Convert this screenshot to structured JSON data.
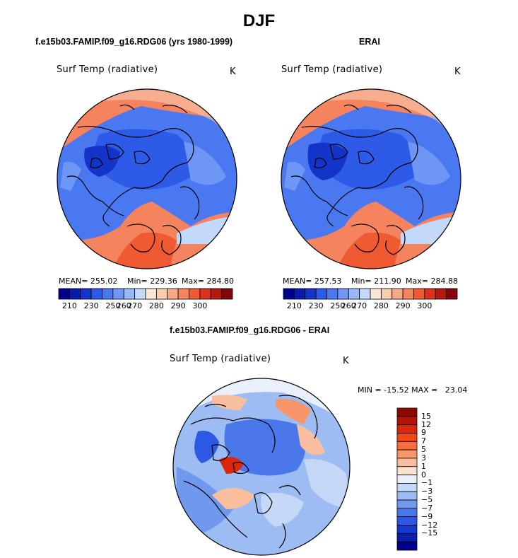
{
  "title": "DJF",
  "panels": [
    {
      "id": "model",
      "subtitle": "f.e15b03.FAMIP.f09_g16.RDG06 (yrs 1980-1999)",
      "variable": "Surf Temp (radiative)",
      "units": "K",
      "mean_text": "MEAN= 255.02",
      "min_text": "Min= 229.36",
      "max_text": "Max= 284.80"
    },
    {
      "id": "erai",
      "subtitle": "ERAI",
      "variable": "Surf Temp (radiative)",
      "units": "K",
      "mean_text": "MEAN= 257.53",
      "min_text": "Min= 211.90",
      "max_text": "Max= 284.88"
    }
  ],
  "diff_panel": {
    "subtitle": "f.e15b03.FAMIP.f09_g16.RDG06 - ERAI",
    "variable": "Surf Temp (radiative)",
    "units": "K",
    "minmax_text": "MIN = -15.52 MAX =   23.04"
  },
  "colorbar_abs": {
    "colors": [
      "#00008c",
      "#0a1aaa",
      "#1433c8",
      "#2d5ae6",
      "#4a78f0",
      "#6e96f5",
      "#96b9fa",
      "#c3d9fc",
      "#fbe7d8",
      "#f9cbb0",
      "#f7a886",
      "#f5835e",
      "#ef5a33",
      "#d8321a",
      "#b4190e",
      "#820808"
    ],
    "tick_labels": [
      "210",
      "230",
      "250",
      "260",
      "270",
      "280",
      "290",
      "300"
    ]
  },
  "colorbar_diff": {
    "colors": [
      "#8c0a00",
      "#b41405",
      "#dc280a",
      "#f54619",
      "#f56e3c",
      "#f7966a",
      "#f9be9e",
      "#fbe1d0",
      "#e9f0fb",
      "#c5d8f7",
      "#9dbcf3",
      "#7099ee",
      "#4a78ea",
      "#2d5ae4",
      "#1438d0",
      "#0a1eae",
      "#00008c"
    ],
    "tick_labels": [
      "15",
      "12",
      "9",
      "7",
      "5",
      "3",
      "1",
      "0",
      "−1",
      "−3",
      "−5",
      "−7",
      "−9",
      "−12",
      "−15"
    ]
  }
}
